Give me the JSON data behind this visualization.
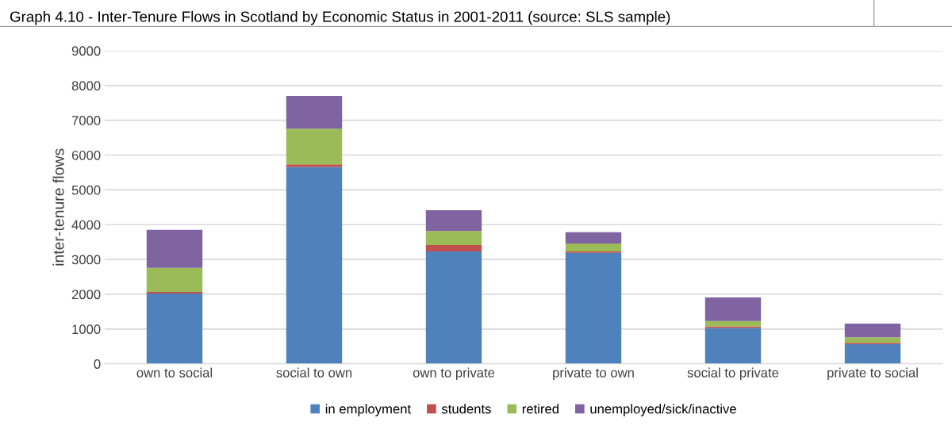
{
  "chart_data": {
    "type": "bar",
    "title": "Graph 4.10 - Inter-Tenure Flows in Scotland by Economic Status in 2001-2011 (source: SLS sample)",
    "ylabel": "inter-tenure flows",
    "categories": [
      "own to social",
      "social to own",
      "own to private",
      "private to own",
      "social to private",
      "private to social"
    ],
    "stacked": true,
    "series": [
      {
        "name": "in employment",
        "color": "#4f81bd",
        "values": [
          2020,
          5660,
          3230,
          3190,
          1030,
          565
        ]
      },
      {
        "name": "students",
        "color": "#c0504d",
        "values": [
          50,
          70,
          185,
          40,
          45,
          40
        ]
      },
      {
        "name": "retired",
        "color": "#9bbb59",
        "values": [
          690,
          1030,
          400,
          230,
          155,
          155
        ]
      },
      {
        "name": "unemployed/sick/inactive",
        "color": "#8064a2",
        "values": [
          1090,
          940,
          600,
          325,
          680,
          395
        ]
      }
    ],
    "ylim": [
      0,
      9000
    ],
    "yticks": [
      0,
      1000,
      2000,
      3000,
      4000,
      5000,
      6000,
      7000,
      8000,
      9000
    ],
    "grid": "y",
    "legend": "bottom"
  }
}
